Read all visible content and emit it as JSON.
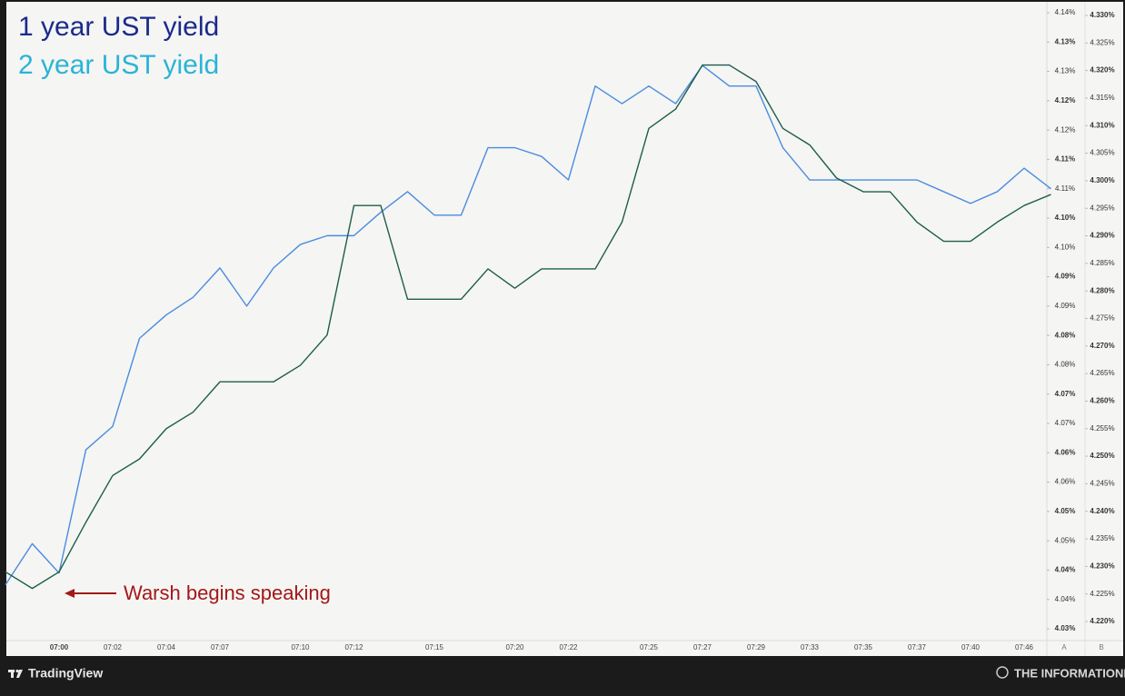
{
  "chart_data": {
    "type": "line",
    "categories": [
      null,
      null,
      "07:00",
      null,
      "07:02",
      null,
      "07:04",
      null,
      "07:07",
      null,
      null,
      "07:10",
      null,
      "07:12",
      null,
      null,
      "07:15",
      null,
      null,
      "07:20",
      null,
      "07:22",
      null,
      null,
      "07:25",
      null,
      "07:27",
      null,
      "07:29",
      null,
      "07:33",
      null,
      "07:35",
      null,
      "07:37",
      null,
      "07:40",
      null,
      "07:46",
      null
    ],
    "series": [
      {
        "name": "1 year UST yield",
        "legend_color": "#1b2a8c",
        "color": "#4a8be0",
        "axis": "y",
        "values": [
          4.042,
          4.049,
          4.044,
          4.065,
          4.069,
          4.084,
          4.088,
          4.091,
          4.096,
          4.0895,
          4.096,
          4.1,
          4.1015,
          4.1015,
          4.1055,
          4.109,
          4.105,
          4.105,
          4.1165,
          4.1165,
          4.115,
          4.111,
          4.127,
          4.124,
          4.127,
          4.124,
          4.1305,
          4.127,
          4.127,
          4.1165,
          4.111,
          4.111,
          4.111,
          4.111,
          4.111,
          4.109,
          4.107,
          4.109,
          4.113,
          4.1095
        ]
      },
      {
        "name": "2 year UST yield",
        "legend_color": "#2ab4d6",
        "color": "#1c5e4c",
        "axis": "y2",
        "values": [
          4.229,
          4.226,
          4.229,
          4.238,
          4.2465,
          4.2495,
          4.255,
          4.258,
          4.2635,
          4.2635,
          4.2635,
          4.2665,
          4.272,
          4.2955,
          4.2955,
          4.2785,
          4.2785,
          4.2785,
          4.284,
          4.2805,
          4.284,
          4.284,
          4.284,
          4.2925,
          4.3095,
          4.313,
          4.321,
          4.321,
          4.318,
          4.3095,
          4.3065,
          4.3005,
          4.298,
          4.298,
          4.2925,
          4.289,
          4.289,
          4.2925,
          4.2955,
          4.2975
        ]
      }
    ],
    "ylim": [
      4.0345,
      4.1395
    ],
    "yticks": [
      {
        "value": 4.1395,
        "label": "4.14%"
      },
      {
        "value": 4.1345,
        "label": "4.13%"
      },
      {
        "value": 4.1295,
        "label": "4.13%"
      },
      {
        "value": 4.1245,
        "label": "4.12%"
      },
      {
        "value": 4.1195,
        "label": "4.12%"
      },
      {
        "value": 4.1145,
        "label": "4.11%"
      },
      {
        "value": 4.1095,
        "label": "4.11%"
      },
      {
        "value": 4.1045,
        "label": "4.10%"
      },
      {
        "value": 4.0995,
        "label": "4.10%"
      },
      {
        "value": 4.0945,
        "label": "4.09%"
      },
      {
        "value": 4.0895,
        "label": "4.09%"
      },
      {
        "value": 4.0845,
        "label": "4.08%"
      },
      {
        "value": 4.0795,
        "label": "4.08%"
      },
      {
        "value": 4.0745,
        "label": "4.07%"
      },
      {
        "value": 4.0695,
        "label": "4.07%"
      },
      {
        "value": 4.0645,
        "label": "4.06%"
      },
      {
        "value": 4.0595,
        "label": "4.06%"
      },
      {
        "value": 4.0545,
        "label": "4.05%"
      },
      {
        "value": 4.0495,
        "label": "4.05%"
      },
      {
        "value": 4.0445,
        "label": "4.04%"
      },
      {
        "value": 4.0395,
        "label": "4.04%"
      },
      {
        "value": 4.0345,
        "label": "4.03%"
      }
    ],
    "y2lim": [
      4.22,
      4.33
    ],
    "y2ticks": [
      {
        "value": 4.33,
        "label": "4.330%"
      },
      {
        "value": 4.325,
        "label": "4.325%"
      },
      {
        "value": 4.32,
        "label": "4.320%"
      },
      {
        "value": 4.315,
        "label": "4.315%"
      },
      {
        "value": 4.31,
        "label": "4.310%"
      },
      {
        "value": 4.305,
        "label": "4.305%"
      },
      {
        "value": 4.3,
        "label": "4.300%"
      },
      {
        "value": 4.295,
        "label": "4.295%"
      },
      {
        "value": 4.29,
        "label": "4.290%"
      },
      {
        "value": 4.285,
        "label": "4.285%"
      },
      {
        "value": 4.28,
        "label": "4.280%"
      },
      {
        "value": 4.275,
        "label": "4.275%"
      },
      {
        "value": 4.27,
        "label": "4.270%"
      },
      {
        "value": 4.265,
        "label": "4.265%"
      },
      {
        "value": 4.26,
        "label": "4.260%"
      },
      {
        "value": 4.255,
        "label": "4.255%"
      },
      {
        "value": 4.25,
        "label": "4.250%"
      },
      {
        "value": 4.245,
        "label": "4.245%"
      },
      {
        "value": 4.24,
        "label": "4.240%"
      },
      {
        "value": 4.235,
        "label": "4.235%"
      },
      {
        "value": 4.23,
        "label": "4.230%"
      },
      {
        "value": 4.225,
        "label": "4.225%"
      },
      {
        "value": 4.22,
        "label": "4.220%"
      }
    ],
    "axis_names": [
      "A",
      "B"
    ],
    "annotation": {
      "text": "Warsh begins speaking",
      "color": "#a31818"
    },
    "grid": false
  },
  "footer": {
    "left": "TradingView",
    "right": "THE INFORMATIONIST"
  }
}
